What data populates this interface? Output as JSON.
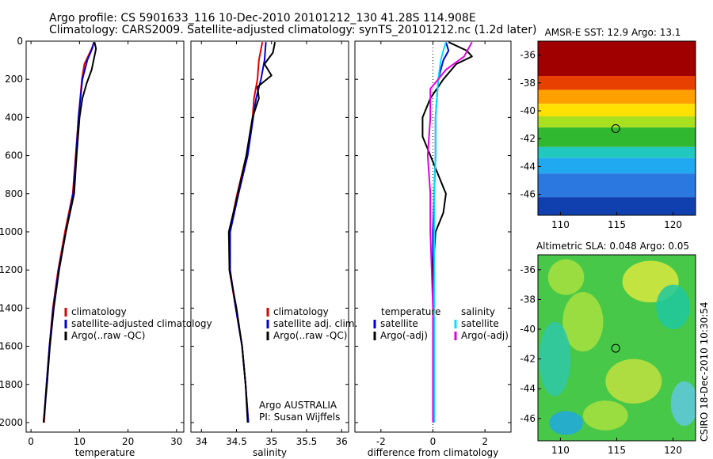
{
  "title": {
    "line1": "Argo profile: CS 5901633_116 10-Dec-2010 20101212_130 41.28S 114.908E",
    "line2": "Climatology: CARS2009. Satellite-adjusted climatology: synTS_20101212.nc (1.2d later)"
  },
  "credit": {
    "argo_line1": "Argo AUSTRALIA",
    "argo_line2": "PI: Susan Wijffels",
    "csiro": "CSIRO 18-Dec-2010 10:30:54"
  },
  "colors": {
    "red": "#e00000",
    "blue": "#0000d0",
    "black": "#000000",
    "cyan": "#00e0ff",
    "magenta": "#e000e0"
  },
  "chart_data": [
    {
      "type": "line",
      "xlabel": "temperature",
      "xlim": [
        -1,
        31.5
      ],
      "xticks": [
        0,
        10,
        20,
        30
      ],
      "ylim": [
        0,
        2050
      ],
      "yticks": [
        0,
        200,
        400,
        600,
        800,
        1000,
        1200,
        1400,
        1600,
        1800,
        2000
      ],
      "legend": [
        "climatology",
        "satellite-adjusted climatology",
        "Argo(..raw -QC)"
      ],
      "series": [
        {
          "color": "red",
          "points": [
            [
              13.0,
              5
            ],
            [
              12.5,
              40
            ],
            [
              11.0,
              120
            ],
            [
              10.5,
              200
            ],
            [
              9.8,
              400
            ],
            [
              9.2,
              600
            ],
            [
              8.6,
              800
            ],
            [
              7.0,
              1000
            ],
            [
              5.6,
              1200
            ],
            [
              4.5,
              1400
            ],
            [
              3.8,
              1600
            ],
            [
              3.2,
              1800
            ],
            [
              2.7,
              2000
            ]
          ]
        },
        {
          "color": "blue",
          "points": [
            [
              13.0,
              5
            ],
            [
              12.6,
              40
            ],
            [
              11.6,
              100
            ],
            [
              10.6,
              200
            ],
            [
              9.8,
              400
            ],
            [
              9.3,
              600
            ],
            [
              8.7,
              800
            ],
            [
              7.2,
              1000
            ],
            [
              5.7,
              1200
            ],
            [
              4.6,
              1400
            ],
            [
              3.8,
              1600
            ],
            [
              3.2,
              1800
            ],
            [
              2.6,
              2000
            ]
          ]
        },
        {
          "color": "black",
          "points": [
            [
              13.1,
              5
            ],
            [
              13.4,
              40
            ],
            [
              12.5,
              150
            ],
            [
              11.5,
              220
            ],
            [
              10.6,
              300
            ],
            [
              10.0,
              400
            ],
            [
              9.4,
              600
            ],
            [
              8.9,
              800
            ],
            [
              7.2,
              1000
            ],
            [
              5.8,
              1200
            ],
            [
              4.7,
              1400
            ],
            [
              3.9,
              1600
            ],
            [
              3.3,
              1800
            ],
            [
              2.6,
              2000
            ]
          ]
        }
      ]
    },
    {
      "type": "line",
      "xlabel": "salinity",
      "xlim": [
        33.85,
        36.1
      ],
      "xticks": [
        34,
        34.5,
        35,
        35.5,
        36
      ],
      "ylim": [
        0,
        2050
      ],
      "yticks": [
        0,
        200,
        400,
        600,
        800,
        1000,
        1200,
        1400,
        1600,
        1800,
        2000
      ],
      "legend": [
        "climatology",
        "satellite adj. clim.",
        "Argo(..raw -QC)"
      ],
      "series": [
        {
          "color": "red",
          "points": [
            [
              34.87,
              5
            ],
            [
              34.82,
              100
            ],
            [
              34.8,
              200
            ],
            [
              34.75,
              300
            ],
            [
              34.73,
              400
            ],
            [
              34.64,
              600
            ],
            [
              34.51,
              800
            ],
            [
              34.4,
              1000
            ],
            [
              34.4,
              1200
            ],
            [
              34.49,
              1400
            ],
            [
              34.58,
              1600
            ],
            [
              34.63,
              1800
            ],
            [
              34.67,
              2000
            ]
          ]
        },
        {
          "color": "blue",
          "points": [
            [
              34.92,
              5
            ],
            [
              34.9,
              100
            ],
            [
              34.85,
              200
            ],
            [
              34.78,
              300
            ],
            [
              34.74,
              400
            ],
            [
              34.66,
              600
            ],
            [
              34.53,
              800
            ],
            [
              34.41,
              1000
            ],
            [
              34.41,
              1200
            ],
            [
              34.49,
              1400
            ],
            [
              34.58,
              1600
            ],
            [
              34.63,
              1800
            ],
            [
              34.67,
              2000
            ]
          ]
        },
        {
          "color": "black",
          "points": [
            [
              35.05,
              5
            ],
            [
              35.02,
              60
            ],
            [
              34.9,
              120
            ],
            [
              35.0,
              180
            ],
            [
              34.8,
              240
            ],
            [
              34.82,
              300
            ],
            [
              34.73,
              400
            ],
            [
              34.64,
              600
            ],
            [
              34.52,
              800
            ],
            [
              34.39,
              1000
            ],
            [
              34.4,
              1200
            ],
            [
              34.5,
              1400
            ],
            [
              34.58,
              1600
            ],
            [
              34.63,
              1800
            ],
            [
              34.66,
              2000
            ]
          ]
        }
      ]
    },
    {
      "type": "line",
      "xlabel": "difference from climatology",
      "xlim": [
        -3.0,
        3.0
      ],
      "xticks": [
        -2,
        0,
        2
      ],
      "ylim": [
        0,
        2050
      ],
      "yticks": [
        0,
        200,
        400,
        600,
        800,
        1000,
        1200,
        1400,
        1600,
        1800,
        2000
      ],
      "legend_left": [
        "temperature",
        "satellite",
        "Argo(-adj)"
      ],
      "legend_right": [
        "salinity",
        "satellite",
        "Argo(-adj)"
      ],
      "series": [
        {
          "color": "blue",
          "points": [
            [
              0.5,
              5
            ],
            [
              0.6,
              50
            ],
            [
              0.4,
              100
            ],
            [
              0.2,
              200
            ],
            [
              0.1,
              400
            ],
            [
              0.1,
              600
            ],
            [
              0.05,
              800
            ],
            [
              0.0,
              1000
            ],
            [
              0.0,
              1200
            ],
            [
              0.0,
              1400
            ],
            [
              0.0,
              1600
            ],
            [
              0.0,
              1800
            ],
            [
              0.0,
              2000
            ]
          ]
        },
        {
          "color": "black",
          "points": [
            [
              0.6,
              5
            ],
            [
              1.3,
              50
            ],
            [
              1.5,
              80
            ],
            [
              0.9,
              120
            ],
            [
              0.4,
              200
            ],
            [
              -0.1,
              300
            ],
            [
              -0.4,
              400
            ],
            [
              -0.4,
              500
            ],
            [
              0.2,
              700
            ],
            [
              0.5,
              800
            ],
            [
              0.4,
              900
            ],
            [
              0.1,
              1000
            ],
            [
              0.0,
              1200
            ],
            [
              0.0,
              1400
            ],
            [
              0.0,
              1600
            ],
            [
              0.0,
              1800
            ],
            [
              0.0,
              2000
            ]
          ]
        },
        {
          "color": "cyan",
          "points": [
            [
              0.5,
              5
            ],
            [
              0.4,
              50
            ],
            [
              0.3,
              100
            ],
            [
              0.2,
              200
            ],
            [
              0.1,
              400
            ],
            [
              0.1,
              600
            ],
            [
              0.05,
              800
            ],
            [
              0.05,
              1000
            ],
            [
              0.05,
              1200
            ],
            [
              0.05,
              1400
            ],
            [
              0.05,
              1600
            ],
            [
              0.05,
              1800
            ],
            [
              0.05,
              2000
            ]
          ]
        },
        {
          "color": "magenta",
          "points": [
            [
              1.5,
              5
            ],
            [
              1.2,
              80
            ],
            [
              0.5,
              150
            ],
            [
              0.2,
              200
            ],
            [
              -0.1,
              250
            ],
            [
              -0.1,
              400
            ],
            [
              -0.2,
              600
            ],
            [
              -0.1,
              800
            ],
            [
              -0.1,
              1000
            ],
            [
              -0.05,
              1200
            ],
            [
              0.0,
              1400
            ],
            [
              0.0,
              1600
            ],
            [
              0.0,
              1800
            ],
            [
              0.0,
              2000
            ]
          ]
        }
      ]
    },
    {
      "type": "heatmap",
      "title": "AMSR-E SST: 12.9 Argo: 13.1",
      "xlim": [
        108,
        122
      ],
      "xticks": [
        110,
        115,
        120
      ],
      "ylim": [
        -47.5,
        -35
      ],
      "yticks": [
        -36,
        -38,
        -40,
        -42,
        -44,
        -46
      ],
      "marker": [
        114.908,
        -41.28
      ],
      "bands": [
        {
          "from": -35,
          "to": -37.5,
          "color": "#a00000"
        },
        {
          "from": -37.5,
          "to": -38.5,
          "color": "#e84000"
        },
        {
          "from": -38.5,
          "to": -39.5,
          "color": "#ffa000"
        },
        {
          "from": -39.5,
          "to": -40.4,
          "color": "#ffe000"
        },
        {
          "from": -40.4,
          "to": -41.2,
          "color": "#a8e020"
        },
        {
          "from": -41.2,
          "to": -42.6,
          "color": "#30b830"
        },
        {
          "from": -42.6,
          "to": -43.4,
          "color": "#20c8c0"
        },
        {
          "from": -43.4,
          "to": -44.5,
          "color": "#20a8f0"
        },
        {
          "from": -44.5,
          "to": -46.2,
          "color": "#2a78e0"
        },
        {
          "from": -46.2,
          "to": -47.5,
          "color": "#1040b0"
        }
      ]
    },
    {
      "type": "heatmap",
      "title": "Altimetric SLA: 0.048 Argo: 0.05",
      "xlim": [
        108,
        122
      ],
      "xticks": [
        110,
        115,
        120
      ],
      "ylim": [
        -47.5,
        -35
      ],
      "yticks": [
        -36,
        -38,
        -40,
        -42,
        -44,
        -46
      ],
      "marker": [
        114.908,
        -41.28
      ],
      "background": "#48c848",
      "blobs": [
        {
          "x": 110.5,
          "y": -36.5,
          "rx": 1.6,
          "ry": 1.2,
          "color": "#a8e040"
        },
        {
          "x": 118.0,
          "y": -36.8,
          "rx": 2.5,
          "ry": 1.4,
          "color": "#d8e840"
        },
        {
          "x": 112.0,
          "y": -39.5,
          "rx": 1.8,
          "ry": 2.0,
          "color": "#a8e040"
        },
        {
          "x": 120.0,
          "y": -38.5,
          "rx": 1.5,
          "ry": 1.5,
          "color": "#20c8a0"
        },
        {
          "x": 109.5,
          "y": -42.0,
          "rx": 1.4,
          "ry": 2.5,
          "color": "#30c8a8"
        },
        {
          "x": 116.5,
          "y": -43.5,
          "rx": 2.5,
          "ry": 1.5,
          "color": "#c0e040"
        },
        {
          "x": 121.0,
          "y": -45.0,
          "rx": 1.2,
          "ry": 1.5,
          "color": "#60c8e0"
        },
        {
          "x": 110.5,
          "y": -46.3,
          "rx": 1.5,
          "ry": 0.8,
          "color": "#20a8e0"
        },
        {
          "x": 114.0,
          "y": -45.8,
          "rx": 2.0,
          "ry": 1.0,
          "color": "#a8e040"
        }
      ]
    }
  ]
}
